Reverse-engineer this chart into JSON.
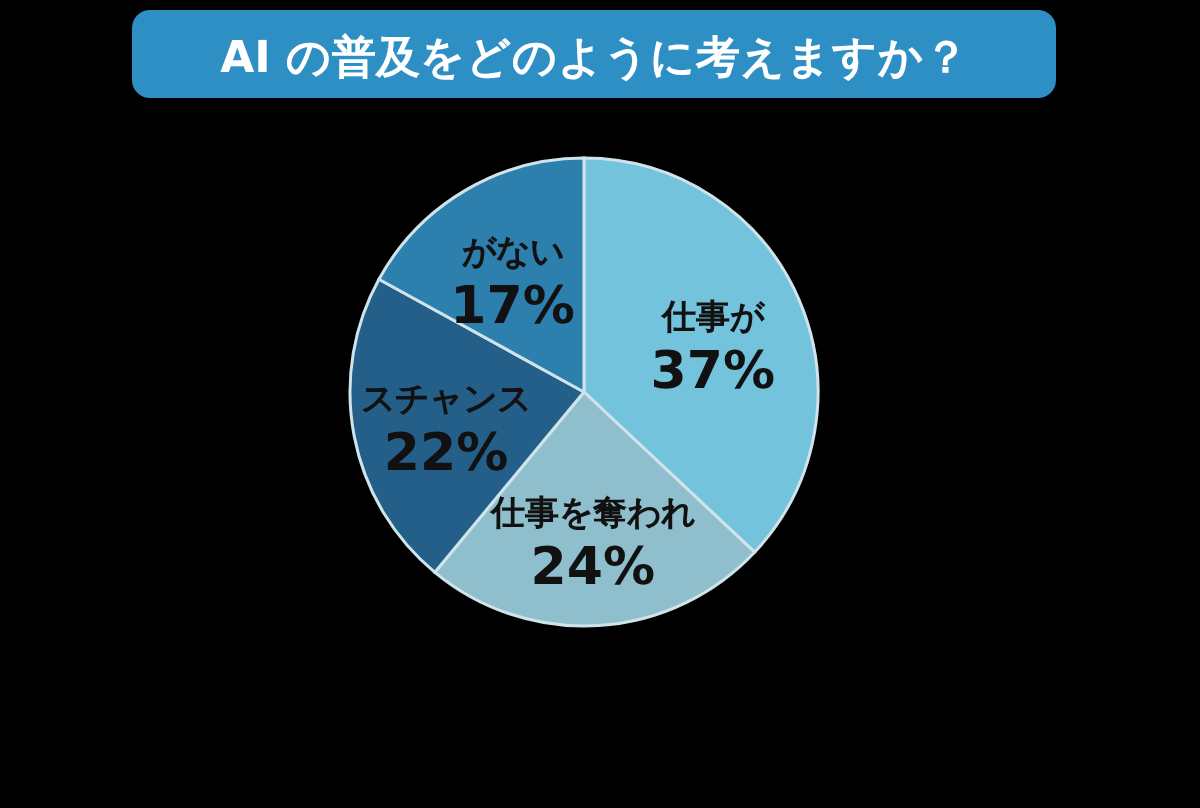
{
  "chart_data": {
    "type": "pie",
    "title": "AI の普及をどのように考えますか？",
    "categories": [
      "仕事が",
      "仕事を奪われ",
      "スチャンス",
      "がない"
    ],
    "values": [
      37,
      24,
      22,
      17
    ],
    "colors": [
      "#74c3dc",
      "#8fbfcc",
      "#235f88",
      "#2d7fae"
    ],
    "value_labels": [
      "37%",
      "24%",
      "22%",
      "17%"
    ]
  }
}
